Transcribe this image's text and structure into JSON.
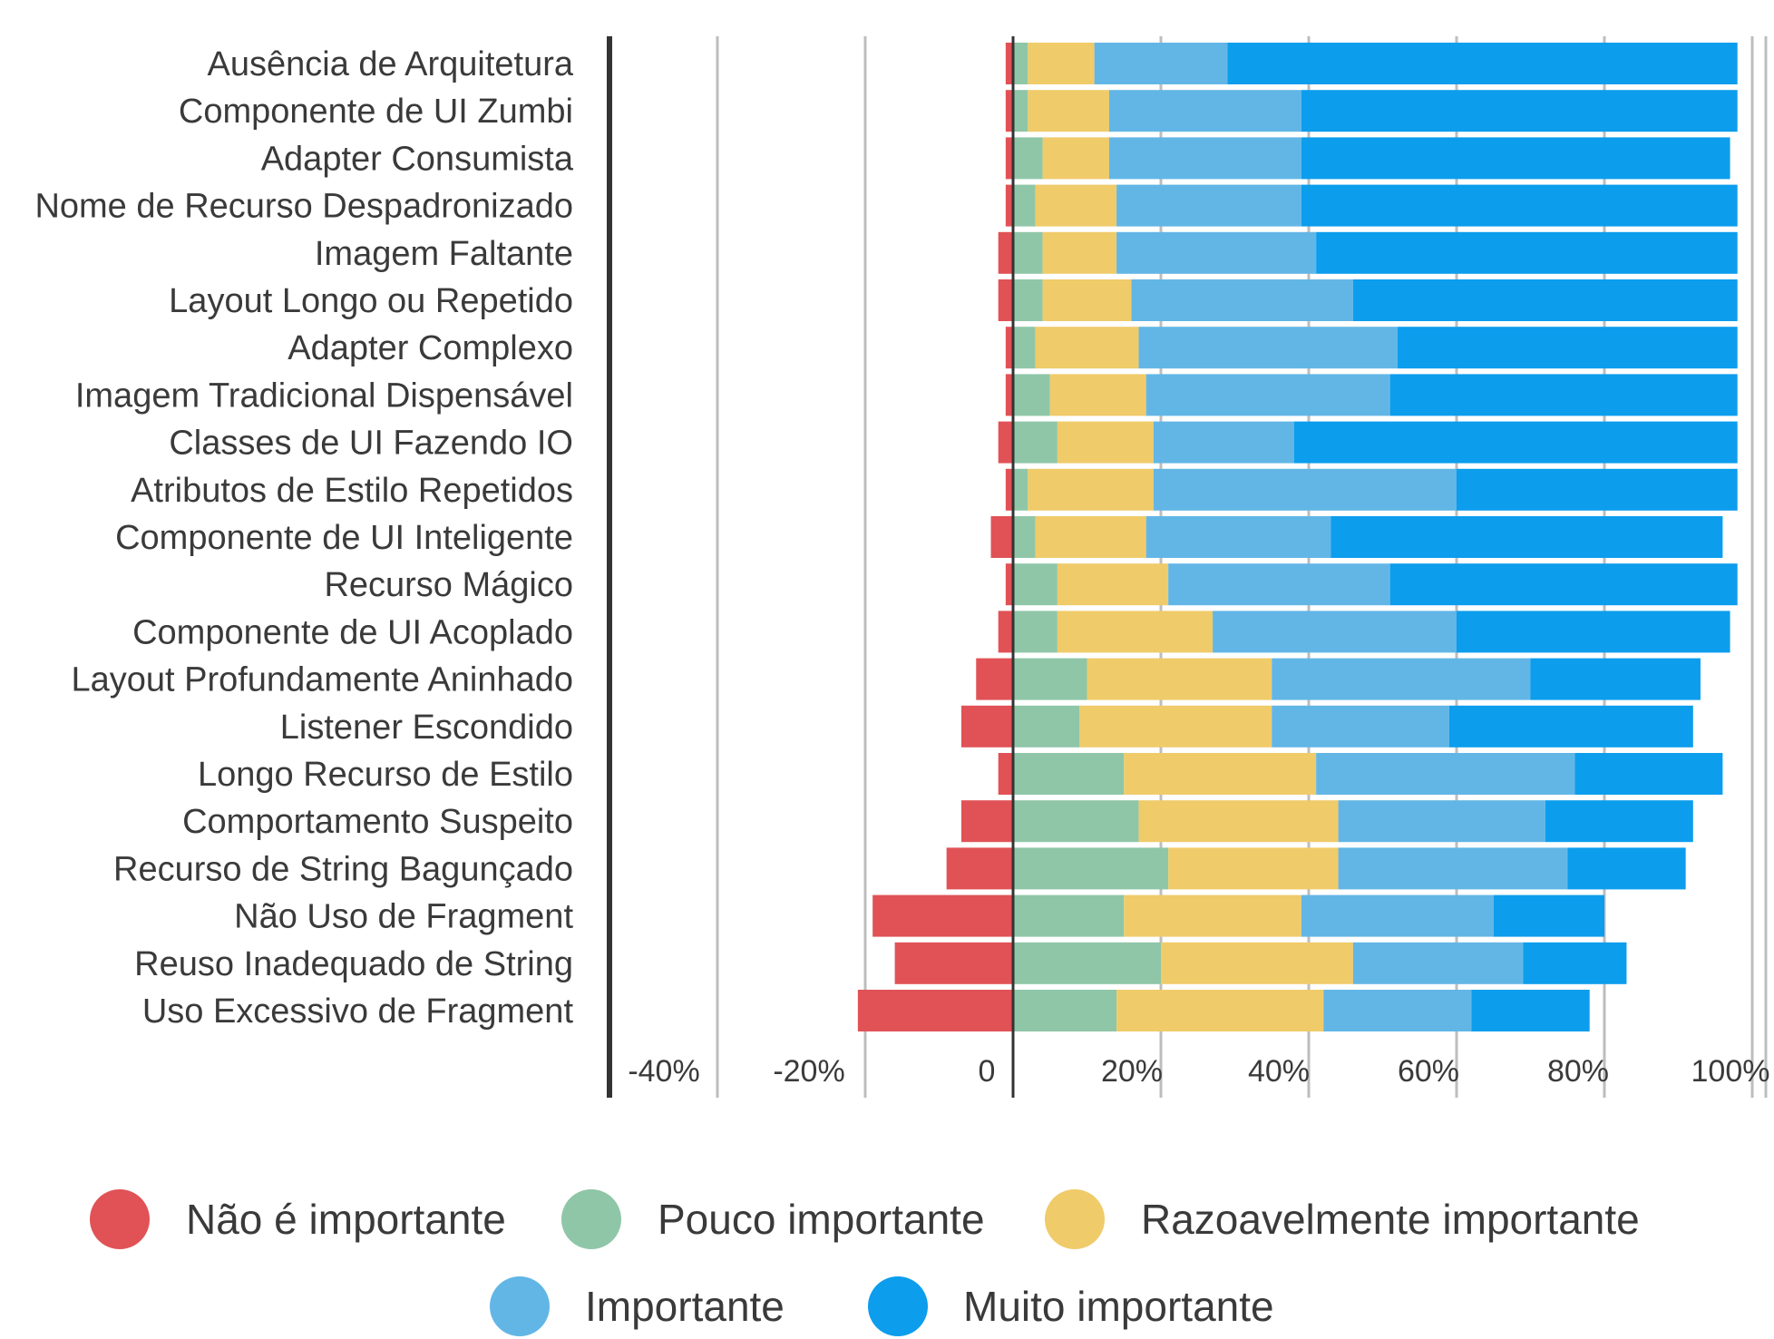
{
  "chart_data": {
    "type": "bar",
    "orientation": "horizontal",
    "stacked": true,
    "diverging": true,
    "title": "",
    "xlabel": "",
    "ylabel": "",
    "xlim": [
      -55,
      100
    ],
    "x_ticks": [
      -40,
      -20,
      0,
      20,
      40,
      60,
      80,
      100
    ],
    "x_tick_labels": [
      "-40%",
      "-20%",
      "0",
      "20%",
      "40%",
      "60%",
      "80%",
      "100%"
    ],
    "grid": true,
    "legend_position": "bottom",
    "categories": [
      "Ausência de Arquitetura",
      "Componente de UI Zumbi",
      "Adapter Consumista",
      "Nome de Recurso Despadronizado",
      "Imagem Faltante",
      "Layout Longo ou Repetido",
      "Adapter Complexo",
      "Imagem Tradicional Dispensável",
      "Classes de UI Fazendo IO",
      "Atributos de Estilo Repetidos",
      "Componente de UI Inteligente",
      "Recurso Mágico",
      "Componente de UI Acoplado",
      "Layout Profundamente Aninhado",
      "Listener Escondido",
      "Longo Recurso de Estilo",
      "Comportamento Suspeito",
      "Recurso de String Bagunçado",
      "Não Uso de Fragment",
      "Reuso Inadequado de String",
      "Uso Excessivo de Fragment"
    ],
    "series": [
      {
        "name": "Não é importante",
        "color": "#e05256",
        "direction": "negative",
        "values": [
          1,
          1,
          1,
          1,
          2,
          2,
          1,
          1,
          2,
          1,
          3,
          1,
          2,
          5,
          7,
          2,
          7,
          9,
          19,
          16,
          21
        ]
      },
      {
        "name": "Pouco importante",
        "color": "#8fc6a8",
        "direction": "positive",
        "values": [
          2,
          2,
          4,
          3,
          4,
          4,
          3,
          5,
          6,
          2,
          3,
          6,
          6,
          10,
          9,
          15,
          17,
          21,
          15,
          20,
          14
        ]
      },
      {
        "name": "Razoavelmente importante",
        "color": "#f0cb6a",
        "direction": "positive",
        "values": [
          9,
          11,
          9,
          11,
          10,
          12,
          14,
          13,
          13,
          17,
          15,
          15,
          21,
          25,
          26,
          26,
          27,
          23,
          24,
          26,
          28
        ]
      },
      {
        "name": "Importante",
        "color": "#62b6e6",
        "direction": "positive",
        "values": [
          18,
          26,
          26,
          25,
          27,
          30,
          35,
          33,
          19,
          41,
          25,
          30,
          33,
          35,
          24,
          35,
          28,
          31,
          26,
          23,
          20
        ]
      },
      {
        "name": "Muito importante",
        "color": "#0c9ded",
        "direction": "positive",
        "values": [
          69,
          59,
          58,
          59,
          57,
          52,
          46,
          47,
          60,
          38,
          53,
          47,
          37,
          23,
          33,
          20,
          20,
          16,
          15,
          14,
          16
        ]
      }
    ]
  }
}
